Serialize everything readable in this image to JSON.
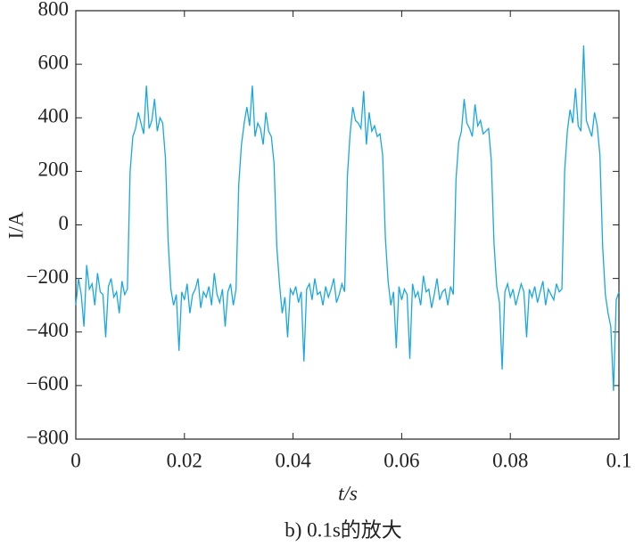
{
  "chart_data": {
    "type": "line",
    "xlabel": "t/s",
    "ylabel": "I/A",
    "caption": "b) 0.1s的放大",
    "xlim": [
      0,
      0.1
    ],
    "ylim": [
      -800,
      800
    ],
    "xticks": [
      0,
      0.02,
      0.04,
      0.06,
      0.08,
      0.1
    ],
    "yticks": [
      {
        "value": -800,
        "label": "−800"
      },
      {
        "value": -600,
        "label": "−600"
      },
      {
        "value": -400,
        "label": "−400"
      },
      {
        "value": -200,
        "label": "−200"
      },
      0,
      200,
      400,
      600,
      800
    ],
    "x": [
      0,
      0.0005,
      0.001,
      0.0015,
      0.002,
      0.0025,
      0.003,
      0.0035,
      0.004,
      0.0045,
      0.005,
      0.0055,
      0.006,
      0.0065,
      0.007,
      0.0075,
      0.008,
      0.0085,
      0.009,
      0.0095,
      0.01,
      0.0105,
      0.011,
      0.0115,
      0.012,
      0.0125,
      0.013,
      0.0135,
      0.014,
      0.0145,
      0.015,
      0.0155,
      0.016,
      0.0165,
      0.017,
      0.0175,
      0.018,
      0.0185,
      0.019,
      0.0195,
      0.02,
      0.0205,
      0.021,
      0.0215,
      0.022,
      0.0225,
      0.023,
      0.0235,
      0.024,
      0.0245,
      0.025,
      0.0255,
      0.026,
      0.0265,
      0.027,
      0.0275,
      0.028,
      0.0285,
      0.029,
      0.0295,
      0.03,
      0.0305,
      0.031,
      0.0315,
      0.032,
      0.0325,
      0.033,
      0.0335,
      0.034,
      0.0345,
      0.035,
      0.0355,
      0.036,
      0.0365,
      0.037,
      0.0375,
      0.038,
      0.0385,
      0.039,
      0.0395,
      0.04,
      0.0405,
      0.041,
      0.0415,
      0.042,
      0.0425,
      0.043,
      0.0435,
      0.044,
      0.0445,
      0.045,
      0.0455,
      0.046,
      0.0465,
      0.047,
      0.0475,
      0.048,
      0.0485,
      0.049,
      0.0495,
      0.05,
      0.0505,
      0.051,
      0.0515,
      0.052,
      0.0525,
      0.053,
      0.0535,
      0.054,
      0.0545,
      0.055,
      0.0555,
      0.056,
      0.0565,
      0.057,
      0.0575,
      0.058,
      0.0585,
      0.059,
      0.0595,
      0.06,
      0.0605,
      0.061,
      0.0615,
      0.062,
      0.0625,
      0.063,
      0.0635,
      0.064,
      0.0645,
      0.065,
      0.0655,
      0.066,
      0.0665,
      0.067,
      0.0675,
      0.068,
      0.0685,
      0.069,
      0.0695,
      0.07,
      0.0705,
      0.071,
      0.0715,
      0.072,
      0.0725,
      0.073,
      0.0735,
      0.074,
      0.0745,
      0.075,
      0.0755,
      0.076,
      0.0765,
      0.077,
      0.0775,
      0.078,
      0.0785,
      0.079,
      0.0795,
      0.08,
      0.0805,
      0.081,
      0.0815,
      0.082,
      0.0825,
      0.083,
      0.0835,
      0.084,
      0.0845,
      0.085,
      0.0855,
      0.086,
      0.0865,
      0.087,
      0.0875,
      0.088,
      0.0885,
      0.089,
      0.0895,
      0.09,
      0.0905,
      0.091,
      0.0915,
      0.092,
      0.0925,
      0.093,
      0.0935,
      0.094,
      0.0945,
      0.095,
      0.0955,
      0.096,
      0.0965,
      0.097,
      0.0975,
      0.098,
      0.0985,
      0.099,
      0.0995,
      0.1
    ],
    "series": [
      {
        "color": "#1aa7e0",
        "values": [
          -300,
          -200,
          -260,
          -380,
          -150,
          -240,
          -220,
          -300,
          -180,
          -250,
          -260,
          -420,
          -230,
          -200,
          -270,
          -250,
          -330,
          -210,
          -260,
          -240,
          200,
          330,
          360,
          420,
          380,
          340,
          520,
          360,
          390,
          470,
          350,
          400,
          380,
          250,
          -60,
          -240,
          -300,
          -260,
          -470,
          -250,
          -280,
          -220,
          -330,
          -260,
          -240,
          -200,
          -310,
          -250,
          -270,
          -230,
          -300,
          -180,
          -260,
          -290,
          -240,
          -380,
          -250,
          -220,
          -300,
          -240,
          150,
          300,
          380,
          440,
          370,
          520,
          330,
          380,
          360,
          300,
          420,
          350,
          330,
          230,
          -80,
          -220,
          -330,
          -270,
          -420,
          -240,
          -260,
          -230,
          -290,
          -250,
          -510,
          -240,
          -220,
          -280,
          -200,
          -260,
          -250,
          -300,
          -230,
          -270,
          -240,
          -200,
          -290,
          -260,
          -220,
          -250,
          180,
          340,
          440,
          390,
          380,
          360,
          500,
          300,
          420,
          350,
          370,
          330,
          340,
          260,
          -50,
          -210,
          -300,
          -250,
          -460,
          -230,
          -280,
          -240,
          -260,
          -500,
          -220,
          -270,
          -250,
          -300,
          -190,
          -250,
          -240,
          -310,
          -260,
          -200,
          -280,
          -250,
          -240,
          -300,
          -230,
          -260,
          170,
          310,
          350,
          470,
          380,
          360,
          330,
          450,
          370,
          390,
          340,
          350,
          360,
          240,
          -70,
          -230,
          -290,
          -540,
          -250,
          -220,
          -270,
          -240,
          -300,
          -260,
          -220,
          -250,
          -420,
          -240,
          -270,
          -230,
          -290,
          -250,
          -210,
          -300,
          -240,
          -260,
          -280,
          -220,
          -250,
          -240,
          200,
          350,
          430,
          380,
          510,
          370,
          350,
          670,
          390,
          360,
          330,
          420,
          370,
          260,
          -80,
          -260,
          -330,
          -380,
          -620,
          -280,
          -250
        ]
      }
    ]
  }
}
